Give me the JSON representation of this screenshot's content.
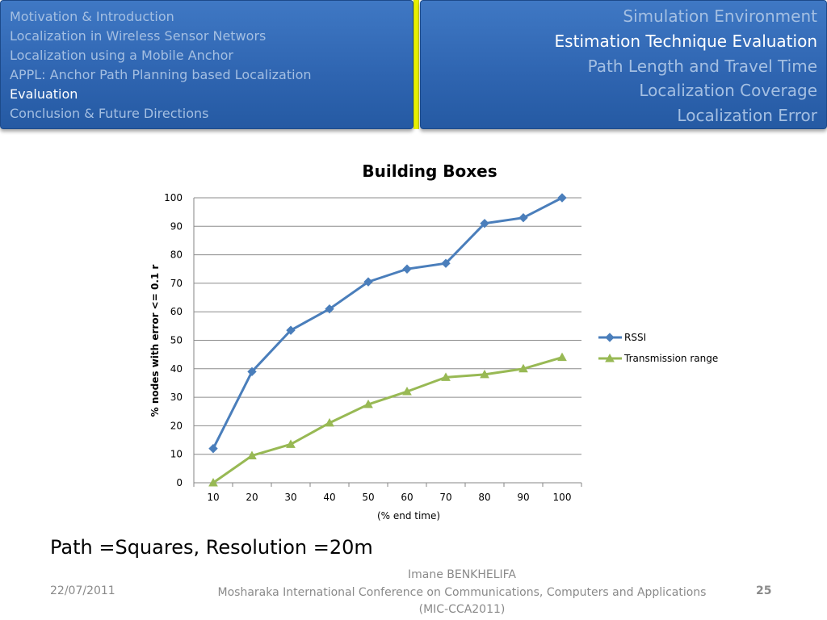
{
  "nav": {
    "left_items": [
      {
        "label": "Motivation & Introduction",
        "active": false
      },
      {
        "label": "Localization in Wireless Sensor Networs",
        "active": false
      },
      {
        "label": "Localization using a Mobile Anchor",
        "active": false
      },
      {
        "label": "APPL: Anchor Path Planning based Localization",
        "active": false
      },
      {
        "label": "Evaluation",
        "active": true
      },
      {
        "label": "Conclusion & Future Directions",
        "active": false
      }
    ],
    "right_items": [
      {
        "label": "Simulation Environment",
        "active": false
      },
      {
        "label": "Estimation Technique Evaluation",
        "active": true
      },
      {
        "label": "Path Length and Travel Time",
        "active": false
      },
      {
        "label": "Localization Coverage",
        "active": false
      },
      {
        "label": "Localization Error",
        "active": false
      }
    ]
  },
  "chart_data": {
    "type": "line",
    "title": "Building Boxes",
    "xlabel": "(% end time)",
    "ylabel": "% nodes with error <= 0.1 r",
    "categories": [
      "10",
      "20",
      "30",
      "40",
      "50",
      "60",
      "70",
      "80",
      "90",
      "100"
    ],
    "ylim": [
      0,
      100
    ],
    "yticks": [
      0,
      10,
      20,
      30,
      40,
      50,
      60,
      70,
      80,
      90,
      100
    ],
    "grid": true,
    "legend_position": "right",
    "series": [
      {
        "name": "RSSI",
        "marker": "diamond",
        "color": "#4a7ebb",
        "values": [
          12,
          39,
          53.5,
          61,
          70.5,
          75,
          77,
          91,
          93,
          100
        ]
      },
      {
        "name": "Transmission range",
        "marker": "triangle",
        "color": "#98b954",
        "values": [
          0,
          9.5,
          13.5,
          21,
          27.5,
          32,
          37,
          38,
          40,
          44
        ]
      }
    ]
  },
  "caption": "Path =Squares, Resolution =20m",
  "footer": {
    "date": "22/07/2011",
    "author": "Imane BENKHELIFA",
    "conference": "Mosharaka International Conference on Communications, Computers and Applications",
    "conference_short": "(MIC-CCA2011)",
    "page_number": "25"
  }
}
